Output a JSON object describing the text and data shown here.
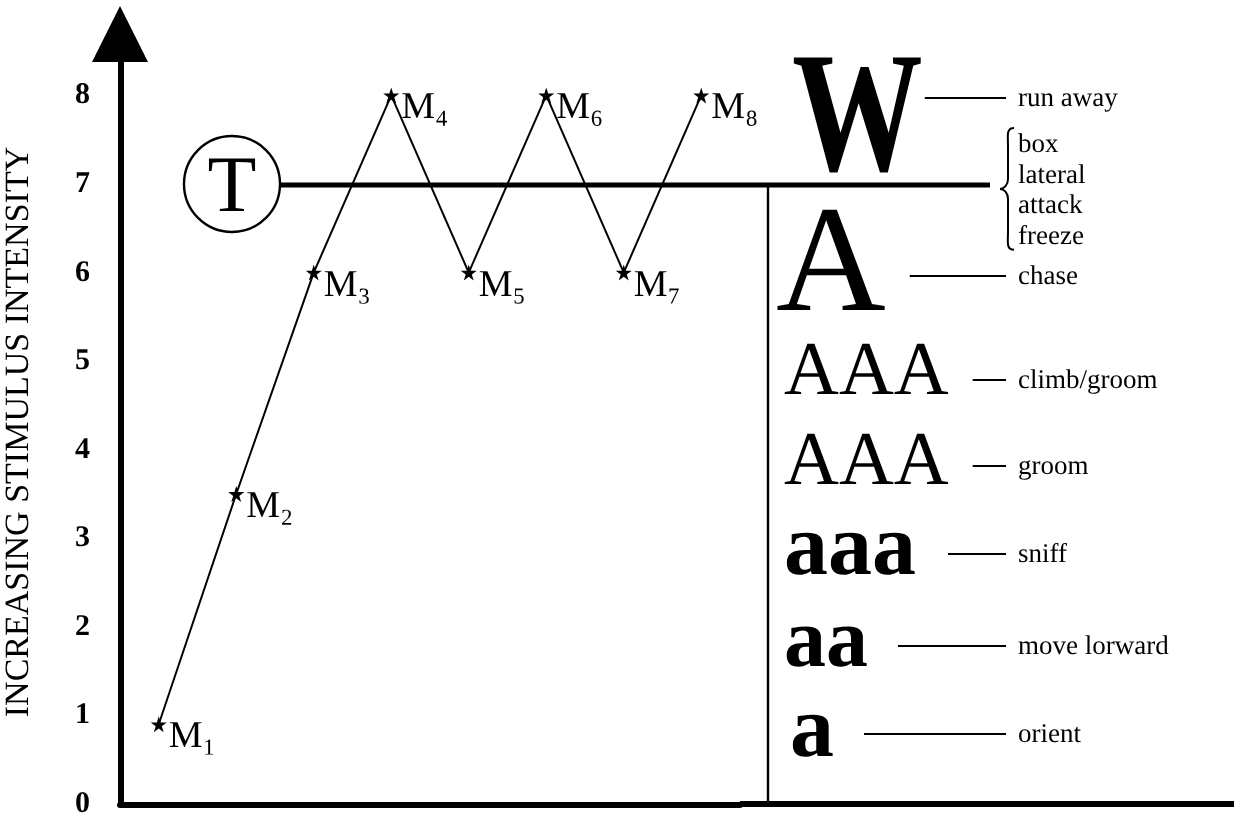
{
  "chart_data": [
    {
      "type": "line",
      "ylabel": "INCREASING STIMULUS INTENSITY",
      "categories": [
        null,
        null,
        null,
        null,
        null,
        null,
        null,
        null
      ],
      "series": [
        {
          "color": "#000000",
          "values": [
            0.9,
            3.5,
            6,
            8,
            6,
            8,
            6,
            8
          ],
          "value_labels": [
            "M₁",
            "M₂",
            "M₃",
            "M₄",
            "M₅",
            "M₆",
            "M₇",
            "M₈"
          ]
        }
      ],
      "ylim": [
        0,
        8.4
      ],
      "yticks": [
        0,
        1,
        2,
        3,
        4,
        5,
        6,
        7,
        8
      ],
      "tick_labels": "y",
      "marker": "star",
      "line_style": "solid",
      "ref_lines": [
        {
          "axis": "y",
          "value": 7,
          "label": "T",
          "color": "#000000"
        }
      ]
    },
    {
      "type": "other",
      "annotations": [
        "W",
        "run away",
        "box",
        "lateral",
        "attack",
        "freeze",
        "A",
        "chase",
        "AAA",
        "climb/groom",
        "AAA",
        "groom",
        "aaa",
        "sniff",
        "aa",
        "move lorward",
        "a",
        "orient"
      ]
    }
  ]
}
